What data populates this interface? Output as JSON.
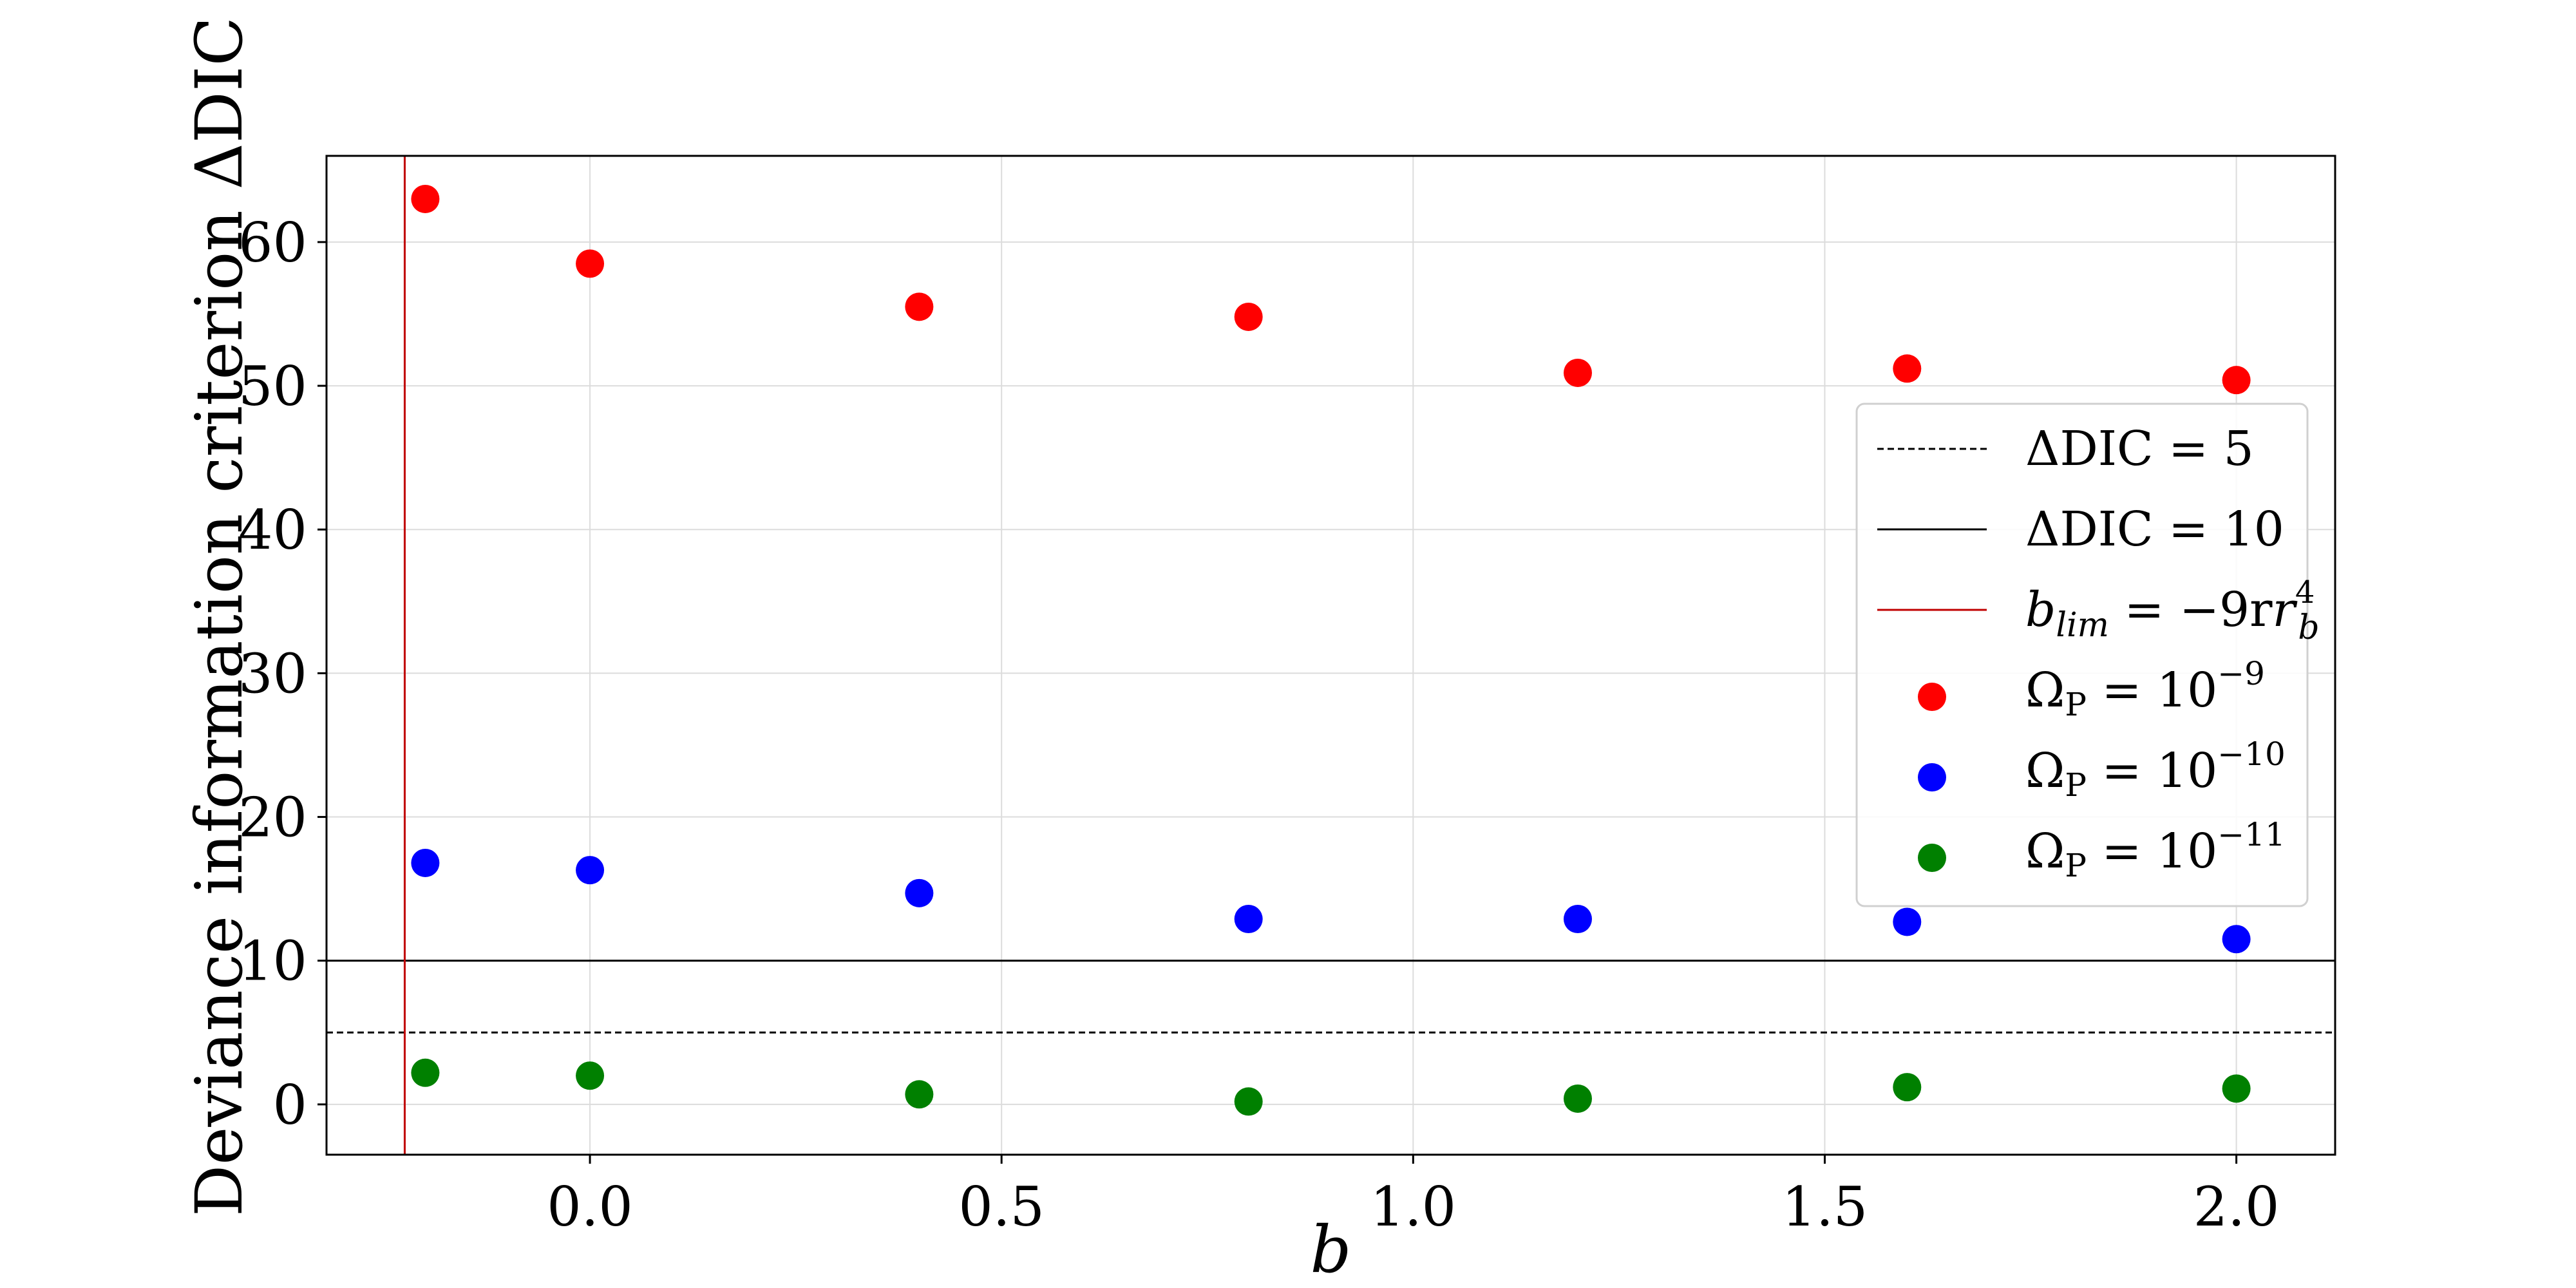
{
  "chart_data": {
    "type": "scatter",
    "title": "",
    "xlabel": "b",
    "ylabel": "Deviance information criterion ΔDIC",
    "xlim": [
      -0.32,
      2.12
    ],
    "ylim": [
      -3.5,
      66
    ],
    "grid": true,
    "x_ticks": [
      0.0,
      0.5,
      1.0,
      1.5,
      2.0
    ],
    "x_tick_labels": [
      "0.0",
      "0.5",
      "1.0",
      "1.5",
      "2.0"
    ],
    "y_ticks": [
      0,
      10,
      20,
      30,
      40,
      50,
      60
    ],
    "y_tick_labels": [
      "0",
      "10",
      "20",
      "30",
      "40",
      "50",
      "60"
    ],
    "legend_position": "center-right",
    "reference_lines": [
      {
        "orientation": "horizontal",
        "value": 5,
        "style": "dashed",
        "color": "#000000",
        "label": "ΔDIC = 5"
      },
      {
        "orientation": "horizontal",
        "value": 10,
        "style": "solid",
        "color": "#000000",
        "label": "ΔDIC = 10"
      },
      {
        "orientation": "vertical",
        "value": -0.225,
        "style": "solid",
        "color": "#c00000",
        "label_main": "b",
        "label_sub": "lim",
        "label_mid": " = −9r",
        "label_sup2": "4",
        "label_sub2": "b"
      }
    ],
    "x": [
      -0.2,
      0.0,
      0.4,
      0.8,
      1.2,
      1.6,
      2.0
    ],
    "series": [
      {
        "label_base": "Ω",
        "label_sub": "P",
        "label_mid": " = 10",
        "label_exp": "−9",
        "color": "#ff0000",
        "values": [
          63.0,
          58.5,
          55.5,
          54.8,
          50.9,
          51.2,
          50.4
        ]
      },
      {
        "label_base": "Ω",
        "label_sub": "P",
        "label_mid": " = 10",
        "label_exp": "−10",
        "color": "#0000ff",
        "values": [
          16.8,
          16.3,
          14.7,
          12.9,
          12.9,
          12.7,
          11.5
        ]
      },
      {
        "label_base": "Ω",
        "label_sub": "P",
        "label_mid": " = 10",
        "label_exp": "−11",
        "color": "#008000",
        "values": [
          2.2,
          2.0,
          0.7,
          0.2,
          0.4,
          1.2,
          1.1
        ]
      }
    ]
  }
}
